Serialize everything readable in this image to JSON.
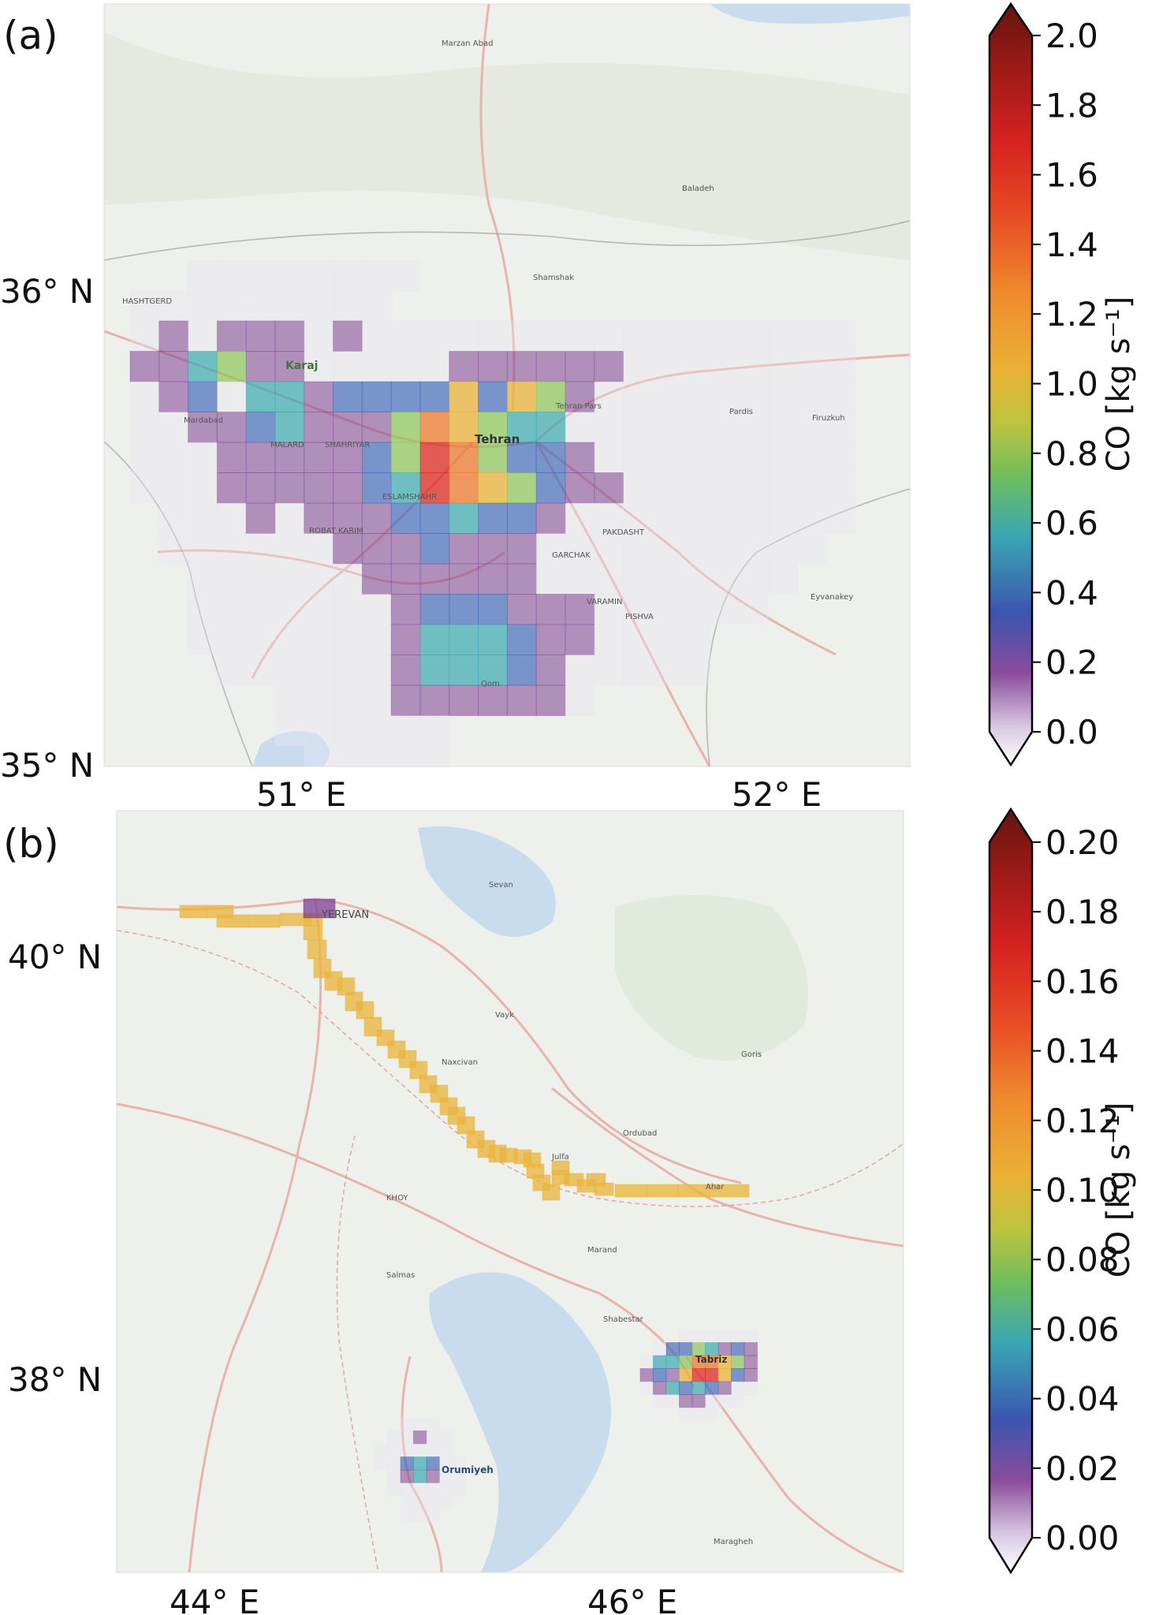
{
  "panels": [
    {
      "id": "a",
      "label": "(a)",
      "lat_ticks": [
        "36° N",
        "35° N"
      ],
      "lon_ticks": [
        "51° E",
        "52° E"
      ],
      "place_labels": [
        "HASHTGERD",
        "Karaj",
        "Tehran",
        "MALARD",
        "SHAHRIYAR",
        "ESLAMSHAHR",
        "ROBAT KARIM",
        "PAKDASHT",
        "GARCHAK",
        "VARAMIN",
        "PISHVA",
        "Mardabad",
        "Tehran Pars",
        "Shamshak",
        "Baladeh",
        "Marzan Abad",
        "Firuzkuh",
        "Pardis",
        "Eyvanakey",
        "Qom"
      ],
      "colorbar": {
        "label": "CO [kg s⁻¹]",
        "ticks": [
          "2.0",
          "1.8",
          "1.6",
          "1.4",
          "1.2",
          "1.0",
          "0.8",
          "0.6",
          "0.4",
          "0.2",
          "0.0"
        ],
        "min": 0.0,
        "max": 2.0,
        "extend": "both"
      }
    },
    {
      "id": "b",
      "label": "(b)",
      "lat_ticks": [
        "40° N",
        "38° N"
      ],
      "lon_ticks": [
        "44° E",
        "46° E"
      ],
      "place_labels": [
        "YEREVAN",
        "Tabriz",
        "Orumiyeh",
        "KHOY",
        "Salmas",
        "Marand",
        "Ahar",
        "Sevan",
        "Vayk",
        "Goris",
        "Maragheh",
        "Shabestar",
        "Naxcivan",
        "Ordubad",
        "Julfa"
      ],
      "colorbar": {
        "label": "CO [kg s⁻¹]",
        "ticks": [
          "0.20",
          "0.18",
          "0.16",
          "0.14",
          "0.12",
          "0.10",
          "0.08",
          "0.06",
          "0.04",
          "0.02",
          "0.00"
        ],
        "min": 0.0,
        "max": 0.2,
        "extend": "both"
      }
    }
  ],
  "colors": {
    "map_bg": "#eef0ec",
    "water": "#c9dcee",
    "road": "#e7b3ab",
    "cmap": [
      "#e8e4f4",
      "#7e3f94",
      "#3a62b8",
      "#39a8b0",
      "#8cc55a",
      "#e9b43a",
      "#ed7a2f",
      "#dc2a22",
      "#6e1410"
    ]
  }
}
